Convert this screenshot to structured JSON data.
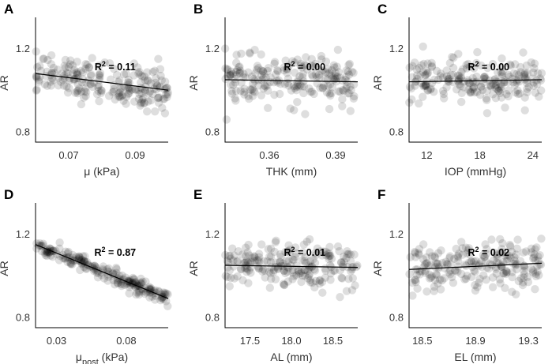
{
  "chart_data": [
    {
      "type": "scatter",
      "panel": "A",
      "ylabel": "AR",
      "xlabel": "μ (kPa)",
      "xlim": [
        0.06,
        0.1
      ],
      "ylim": [
        0.75,
        1.35
      ],
      "xticks": [
        0.07,
        0.09
      ],
      "xtick_labels": [
        "0.07",
        "0.09"
      ],
      "yticks": [
        0.8,
        1.2
      ],
      "ytick_labels": [
        "0.8",
        "1.2"
      ],
      "fit": {
        "x": [
          0.06,
          0.1
        ],
        "y": [
          1.08,
          1.0
        ]
      },
      "r2": "0.11",
      "points": {
        "n": 220,
        "x_range": [
          0.06,
          0.1
        ],
        "center": [
          1.08,
          1.0
        ],
        "spread": 0.05
      }
    },
    {
      "type": "scatter",
      "panel": "B",
      "ylabel": "AR",
      "xlabel": "THK (mm)",
      "xlim": [
        0.34,
        0.4
      ],
      "ylim": [
        0.75,
        1.35
      ],
      "xticks": [
        0.36,
        0.39
      ],
      "xtick_labels": [
        "0.36",
        "0.39"
      ],
      "yticks": [
        0.8,
        1.2
      ],
      "ytick_labels": [
        "0.8",
        "1.2"
      ],
      "fit": {
        "x": [
          0.34,
          0.4
        ],
        "y": [
          1.05,
          1.04
        ]
      },
      "r2": "0.00",
      "points": {
        "n": 220,
        "x_range": [
          0.34,
          0.4
        ],
        "center": [
          1.05,
          1.04
        ],
        "spread": 0.055
      }
    },
    {
      "type": "scatter",
      "panel": "C",
      "ylabel": "AR",
      "xlabel": "IOP (mmHg)",
      "xlim": [
        10,
        25
      ],
      "ylim": [
        0.75,
        1.35
      ],
      "xticks": [
        12,
        18,
        24
      ],
      "xtick_labels": [
        "12",
        "18",
        "24"
      ],
      "yticks": [
        0.8,
        1.2
      ],
      "ytick_labels": [
        "0.8",
        "1.2"
      ],
      "fit": {
        "x": [
          10,
          25
        ],
        "y": [
          1.04,
          1.05
        ]
      },
      "r2": "0.00",
      "points": {
        "n": 220,
        "x_range": [
          10,
          25
        ],
        "center": [
          1.04,
          1.05
        ],
        "spread": 0.055
      }
    },
    {
      "type": "scatter",
      "panel": "D",
      "ylabel": "AR",
      "xlabel": "μ",
      "xlabel_sub": "post",
      "xlabel_suffix": " (kPa)",
      "xlim": [
        0.015,
        0.11
      ],
      "ylim": [
        0.75,
        1.35
      ],
      "xticks": [
        0.03,
        0.08
      ],
      "xtick_labels": [
        "0.03",
        "0.08"
      ],
      "yticks": [
        0.8,
        1.2
      ],
      "ytick_labels": [
        "0.8",
        "1.2"
      ],
      "fit": {
        "x": [
          0.015,
          0.11
        ],
        "y": [
          1.15,
          0.89
        ]
      },
      "r2": "0.87",
      "points": {
        "n": 220,
        "x_range": [
          0.015,
          0.11
        ],
        "center": [
          1.15,
          0.89
        ],
        "spread": 0.018
      }
    },
    {
      "type": "scatter",
      "panel": "E",
      "ylabel": "AR",
      "xlabel": "AL (mm)",
      "xlim": [
        17.2,
        18.8
      ],
      "ylim": [
        0.75,
        1.35
      ],
      "xticks": [
        17.5,
        18.0,
        18.5
      ],
      "xtick_labels": [
        "17.5",
        "18.0",
        "18.5"
      ],
      "yticks": [
        0.8,
        1.2
      ],
      "ytick_labels": [
        "0.8",
        "1.2"
      ],
      "fit": {
        "x": [
          17.2,
          18.8
        ],
        "y": [
          1.05,
          1.04
        ]
      },
      "r2": "0.01",
      "points": {
        "n": 220,
        "x_range": [
          17.2,
          18.8
        ],
        "center": [
          1.05,
          1.04
        ],
        "spread": 0.055
      }
    },
    {
      "type": "scatter",
      "panel": "F",
      "ylabel": "AR",
      "xlabel": "EL (mm)",
      "xlim": [
        18.4,
        19.4
      ],
      "ylim": [
        0.75,
        1.35
      ],
      "xticks": [
        18.5,
        18.9,
        19.3
      ],
      "xtick_labels": [
        "18.5",
        "18.9",
        "19.3"
      ],
      "yticks": [
        0.8,
        1.2
      ],
      "ytick_labels": [
        "0.8",
        "1.2"
      ],
      "fit": {
        "x": [
          18.4,
          19.4
        ],
        "y": [
          1.03,
          1.06
        ]
      },
      "r2": "0.02",
      "points": {
        "n": 220,
        "x_range": [
          18.4,
          19.4
        ],
        "center": [
          1.03,
          1.06
        ],
        "spread": 0.055
      }
    }
  ]
}
